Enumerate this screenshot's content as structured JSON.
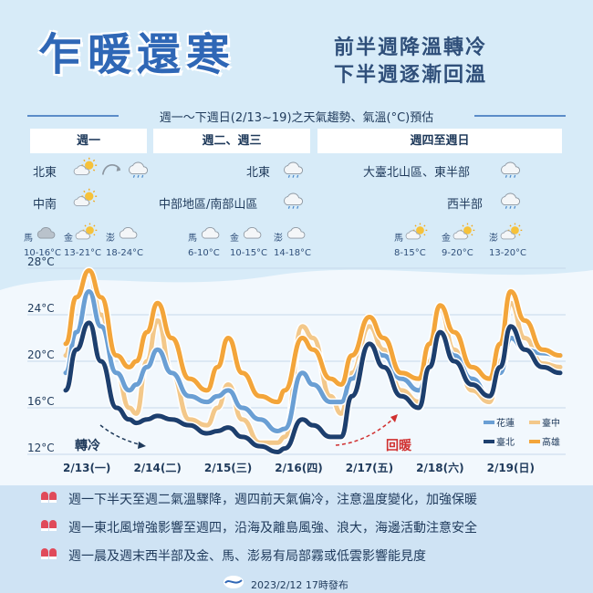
{
  "header": {
    "title": "乍暖還寒",
    "subtitle_line1": "前半週降溫轉冷",
    "subtitle_line2": "下半週逐漸回溫",
    "period": "週一～下週日(2/13~19)之天氣趨勢、氣溫(°C)預估"
  },
  "columns": [
    {
      "label": "週一"
    },
    {
      "label": "週二、週三"
    },
    {
      "label": "週四至週日"
    }
  ],
  "col1": {
    "north": "北東",
    "north_icons": [
      "partly-cloudy-icon",
      "arrow-icon",
      "rain-cloud-icon"
    ],
    "central": "中南",
    "central_icons": [
      "partly-cloudy-icon"
    ],
    "islands": [
      {
        "name": "馬",
        "temp": "10-16°C",
        "icon": "cloudy-icon"
      },
      {
        "name": "金",
        "temp": "13-21°C",
        "icon": "partly-cloudy-icon"
      },
      {
        "name": "澎",
        "temp": "18-24°C",
        "icon": "cloud-icon"
      }
    ]
  },
  "col2": {
    "north": "北東",
    "north_icons": [
      "rain-cloud-icon"
    ],
    "central": "中部地區/南部山區",
    "central_icons": [
      "rain-cloud-icon"
    ],
    "islands": [
      {
        "name": "馬",
        "temp": "6-10°C",
        "icon": "cloud-icon"
      },
      {
        "name": "金",
        "temp": "10-15°C",
        "icon": "cloud-icon"
      },
      {
        "name": "澎",
        "temp": "14-18°C",
        "icon": "cloud-icon"
      }
    ]
  },
  "col3": {
    "north": "大臺北山區、東半部",
    "north_icons": [
      "rain-cloud-icon"
    ],
    "central": "西半部",
    "central_icons": [
      "rain-cloud-icon"
    ],
    "islands": [
      {
        "name": "馬",
        "temp": "8-15°C",
        "icon": "partly-sunny-icon"
      },
      {
        "name": "金",
        "temp": "9-20°C",
        "icon": "partly-sunny-icon"
      },
      {
        "name": "澎",
        "temp": "13-20°C",
        "icon": "partly-sunny-icon"
      }
    ]
  },
  "chart_data": {
    "type": "line",
    "ylim": [
      12,
      28
    ],
    "yticks": [
      "28°C",
      "24°C",
      "20°C",
      "16°C",
      "12°C"
    ],
    "ytick_values": [
      28,
      24,
      20,
      16,
      12
    ],
    "x_ticks": [
      "2/13(一)",
      "2/14(二)",
      "2/15(三)",
      "2/16(四)",
      "2/17(五)",
      "2/18(六)",
      "2/19(日)"
    ],
    "x_range": [
      0,
      7
    ],
    "grid": true,
    "legend_position": "bottom-right",
    "series": [
      {
        "name": "花蓮",
        "color": "#6a9fd4",
        "points": [
          [
            0,
            19
          ],
          [
            0.15,
            22.5
          ],
          [
            0.33,
            26
          ],
          [
            0.5,
            23
          ],
          [
            0.72,
            19
          ],
          [
            0.9,
            17.5
          ],
          [
            1.0,
            18
          ],
          [
            1.15,
            19.5
          ],
          [
            1.3,
            21
          ],
          [
            1.5,
            19
          ],
          [
            1.75,
            17
          ],
          [
            2.0,
            16.5
          ],
          [
            2.15,
            17
          ],
          [
            2.3,
            17.5
          ],
          [
            2.5,
            16
          ],
          [
            2.75,
            15
          ],
          [
            3.0,
            14
          ],
          [
            3.1,
            14.2
          ],
          [
            3.35,
            19
          ],
          [
            3.5,
            18
          ],
          [
            3.75,
            16.5
          ],
          [
            3.9,
            16.5
          ],
          [
            4.05,
            18.5
          ],
          [
            4.3,
            21.3
          ],
          [
            4.5,
            20.5
          ],
          [
            4.75,
            18.5
          ],
          [
            5.0,
            17.5
          ],
          [
            5.15,
            19.5
          ],
          [
            5.3,
            22.5
          ],
          [
            5.5,
            20.5
          ],
          [
            5.75,
            18.5
          ],
          [
            6.0,
            17
          ],
          [
            6.15,
            19
          ],
          [
            6.3,
            22
          ],
          [
            6.5,
            21
          ],
          [
            6.75,
            20.7
          ],
          [
            7.0,
            20.5
          ]
        ]
      },
      {
        "name": "臺中",
        "color": "#f3c88a",
        "points": [
          [
            0,
            20.5
          ],
          [
            0.15,
            25.5
          ],
          [
            0.33,
            27.5
          ],
          [
            0.5,
            24
          ],
          [
            0.72,
            19
          ],
          [
            0.9,
            16
          ],
          [
            1.0,
            15.5
          ],
          [
            1.15,
            20
          ],
          [
            1.3,
            23.5
          ],
          [
            1.5,
            19
          ],
          [
            1.75,
            15
          ],
          [
            2.0,
            14.5
          ],
          [
            2.15,
            16
          ],
          [
            2.3,
            18
          ],
          [
            2.5,
            15
          ],
          [
            2.75,
            13
          ],
          [
            3.0,
            13
          ],
          [
            3.1,
            13.5
          ],
          [
            3.35,
            23
          ],
          [
            3.5,
            22
          ],
          [
            3.75,
            17
          ],
          [
            3.9,
            15.5
          ],
          [
            4.05,
            19
          ],
          [
            4.3,
            23
          ],
          [
            4.5,
            21
          ],
          [
            4.75,
            17.5
          ],
          [
            5.0,
            16.5
          ],
          [
            5.15,
            20
          ],
          [
            5.3,
            24.5
          ],
          [
            5.5,
            21
          ],
          [
            5.75,
            17.5
          ],
          [
            6.0,
            16.5
          ],
          [
            6.15,
            20
          ],
          [
            6.3,
            25
          ],
          [
            6.5,
            22
          ],
          [
            6.75,
            19.8
          ],
          [
            7.0,
            19.5
          ]
        ]
      },
      {
        "name": "臺北",
        "color": "#1d3f6e",
        "points": [
          [
            0,
            17.5
          ],
          [
            0.15,
            21
          ],
          [
            0.33,
            23.3
          ],
          [
            0.5,
            20
          ],
          [
            0.72,
            16
          ],
          [
            0.9,
            15
          ],
          [
            1.0,
            14.7
          ],
          [
            1.15,
            15
          ],
          [
            1.3,
            15.3
          ],
          [
            1.5,
            15
          ],
          [
            1.75,
            14.5
          ],
          [
            2.0,
            13.8
          ],
          [
            2.15,
            14
          ],
          [
            2.3,
            14.3
          ],
          [
            2.5,
            13.5
          ],
          [
            2.75,
            12.7
          ],
          [
            3.0,
            12.2
          ],
          [
            3.1,
            12.5
          ],
          [
            3.35,
            15
          ],
          [
            3.5,
            14.5
          ],
          [
            3.75,
            13.5
          ],
          [
            3.9,
            13.5
          ],
          [
            4.05,
            17
          ],
          [
            4.3,
            21.5
          ],
          [
            4.5,
            19.5
          ],
          [
            4.75,
            17
          ],
          [
            5.0,
            16
          ],
          [
            5.15,
            19.5
          ],
          [
            5.3,
            22.5
          ],
          [
            5.5,
            20
          ],
          [
            5.75,
            18
          ],
          [
            6.0,
            17
          ],
          [
            6.15,
            19.5
          ],
          [
            6.3,
            23
          ],
          [
            6.5,
            21
          ],
          [
            6.75,
            19.5
          ],
          [
            7.0,
            19
          ]
        ]
      },
      {
        "name": "高雄",
        "color": "#f3a53a",
        "points": [
          [
            0,
            21.5
          ],
          [
            0.15,
            25.5
          ],
          [
            0.33,
            27.8
          ],
          [
            0.5,
            25.5
          ],
          [
            0.72,
            20.5
          ],
          [
            0.9,
            19.5
          ],
          [
            1.0,
            20
          ],
          [
            1.15,
            22.5
          ],
          [
            1.3,
            25
          ],
          [
            1.5,
            22
          ],
          [
            1.75,
            18.5
          ],
          [
            2.0,
            17.5
          ],
          [
            2.15,
            19.5
          ],
          [
            2.3,
            22
          ],
          [
            2.5,
            19
          ],
          [
            2.75,
            17
          ],
          [
            3.0,
            16.5
          ],
          [
            3.1,
            17.5
          ],
          [
            3.35,
            22
          ],
          [
            3.5,
            21
          ],
          [
            3.75,
            18.5
          ],
          [
            3.9,
            18
          ],
          [
            4.05,
            20.5
          ],
          [
            4.3,
            23.8
          ],
          [
            4.5,
            22
          ],
          [
            4.75,
            19
          ],
          [
            5.0,
            18.5
          ],
          [
            5.15,
            21.5
          ],
          [
            5.3,
            24.8
          ],
          [
            5.5,
            22.5
          ],
          [
            5.75,
            19.5
          ],
          [
            6.0,
            18.5
          ],
          [
            6.15,
            21.5
          ],
          [
            6.3,
            26
          ],
          [
            6.5,
            23.5
          ],
          [
            6.75,
            21
          ],
          [
            7.0,
            20.5
          ]
        ]
      }
    ],
    "annotations": {
      "cold": "轉冷",
      "warm": "回暖"
    }
  },
  "notes": [
    "週一下半天至週二氣溫驟降，週四前天氣偏冷，注意溫度變化，加強保暖",
    "週一東北風增強影響至週四，沿海及離島風強、浪大，海邊活動注意安全",
    "週一晨及週末西半部及金、馬、澎易有局部霧或低雲影響能見度"
  ],
  "footer": "2023/2/12 17時發布",
  "colors": {
    "title": "#2f67b6",
    "cold_text": "#1f3a5b",
    "warm_text": "#d03030",
    "background": "#d7ebf8"
  }
}
